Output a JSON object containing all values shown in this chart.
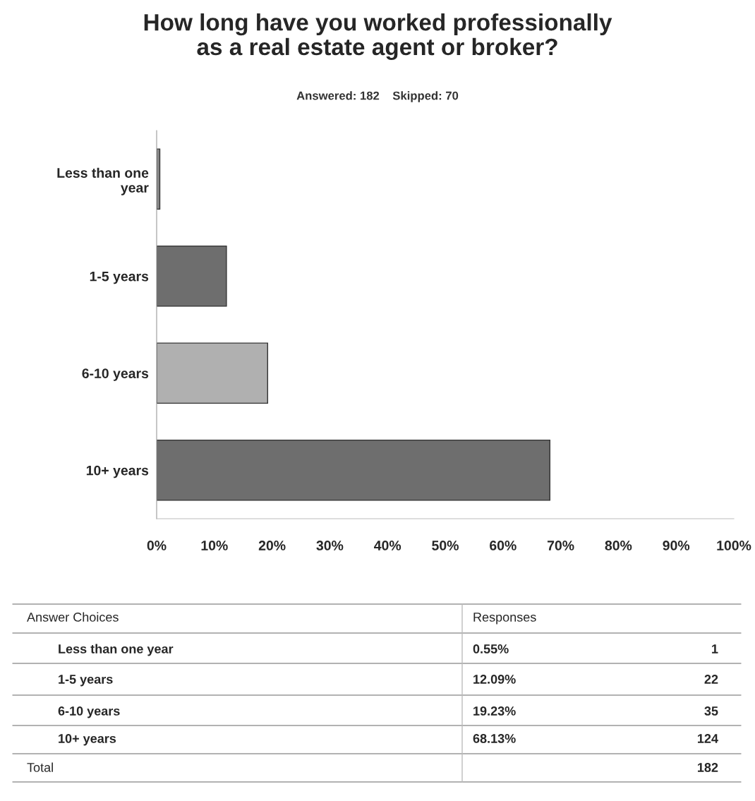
{
  "chart_data": {
    "type": "bar",
    "orientation": "horizontal",
    "title": "How long have you worked professionally\nas a real estate agent or broker?",
    "subtitle": "Answered: 182    Skipped: 70",
    "categories": [
      "Less than one\nyear",
      "1-5 years",
      "6-10 years",
      "10+ years"
    ],
    "values": [
      0.55,
      12.09,
      19.23,
      68.13
    ],
    "colors": [
      "#8a8a8a",
      "#6e6e6e",
      "#b0b0b0",
      "#6e6e6e"
    ],
    "xlim": [
      0,
      100
    ],
    "xticks": [
      {
        "value": 0,
        "label": "0%"
      },
      {
        "value": 10,
        "label": "10%"
      },
      {
        "value": 20,
        "label": "20%"
      },
      {
        "value": 30,
        "label": "30%"
      },
      {
        "value": 40,
        "label": "40%"
      },
      {
        "value": 50,
        "label": "50%"
      },
      {
        "value": 60,
        "label": "60%"
      },
      {
        "value": 70,
        "label": "70%"
      },
      {
        "value": 80,
        "label": "80%"
      },
      {
        "value": 90,
        "label": "90%"
      },
      {
        "value": 100,
        "label": "100%"
      }
    ],
    "annotations": [
      "Answer Choices",
      "Responses",
      "0.55%",
      "1",
      "12.09%",
      "22",
      "19.23%",
      "35",
      "68.13%",
      "124",
      "Total",
      "182"
    ],
    "grid": false,
    "legend": false
  }
}
